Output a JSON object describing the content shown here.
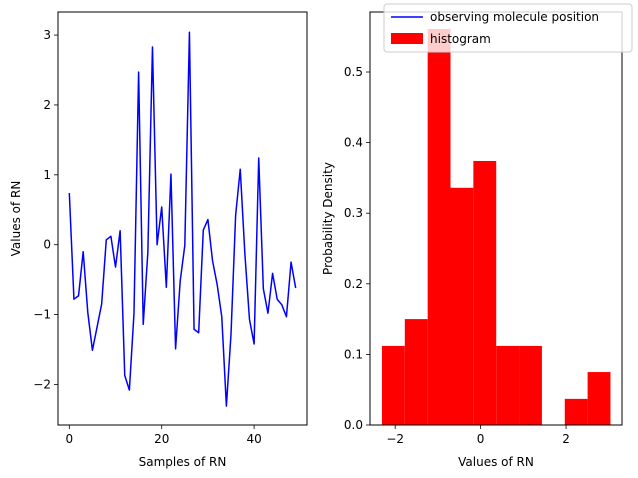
{
  "chart_data": [
    {
      "type": "line",
      "xlabel": "Samples of RN",
      "ylabel": "Values of RN",
      "xlim": [
        -2.45,
        51.45
      ],
      "ylim": [
        -2.58,
        3.33
      ],
      "xticks": [
        0,
        20,
        40
      ],
      "yticks": [
        -2,
        -1,
        0,
        1,
        2,
        3
      ],
      "series": [
        {
          "name": "observing molecule position",
          "color": "#0000ff",
          "x": [
            0,
            1,
            2,
            3,
            4,
            5,
            6,
            7,
            8,
            9,
            10,
            11,
            12,
            13,
            14,
            15,
            16,
            17,
            18,
            19,
            20,
            21,
            22,
            23,
            24,
            25,
            26,
            27,
            28,
            29,
            30,
            31,
            32,
            33,
            34,
            35,
            36,
            37,
            38,
            39,
            40,
            41,
            42,
            43,
            44,
            45,
            46,
            47,
            48,
            49
          ],
          "values": [
            0.74,
            -0.78,
            -0.73,
            -0.1,
            -0.97,
            -1.51,
            -1.18,
            -0.85,
            0.07,
            0.12,
            -0.32,
            0.2,
            -1.87,
            -2.08,
            -0.98,
            2.47,
            -1.14,
            -0.11,
            2.83,
            0.0,
            0.54,
            -0.61,
            1.01,
            -1.49,
            -0.52,
            -0.01,
            3.04,
            -1.21,
            -1.26,
            0.21,
            0.36,
            -0.23,
            -0.57,
            -1.03,
            -2.31,
            -1.28,
            0.42,
            1.08,
            -0.13,
            -1.07,
            -1.42,
            1.24,
            -0.63,
            -0.98,
            -0.41,
            -0.78,
            -0.86,
            -1.03,
            -0.25,
            -0.62
          ]
        }
      ]
    },
    {
      "type": "bar",
      "xlabel": "Values of RN",
      "ylabel": "Probability Density",
      "xlim": [
        -2.59,
        3.31
      ],
      "ylim": [
        0,
        0.585
      ],
      "xticks": [
        -2,
        0,
        2
      ],
      "yticks": [
        0.0,
        0.1,
        0.2,
        0.3,
        0.4,
        0.5
      ],
      "series": [
        {
          "name": "histogram",
          "color": "#ff0000",
          "bin_edges": [
            -2.31,
            -1.775,
            -1.24,
            -0.705,
            -0.17,
            0.365,
            0.9,
            1.435,
            1.97,
            2.505,
            3.04
          ],
          "values": [
            0.112,
            0.15,
            0.561,
            0.336,
            0.374,
            0.112,
            0.112,
            0.0,
            0.037,
            0.075
          ]
        }
      ]
    }
  ],
  "legend": {
    "placement": "top-right",
    "entries": [
      {
        "label": "observing molecule position",
        "color": "#0000ff",
        "kind": "line"
      },
      {
        "label": "histogram",
        "color": "#ff0000",
        "kind": "patch"
      }
    ]
  }
}
